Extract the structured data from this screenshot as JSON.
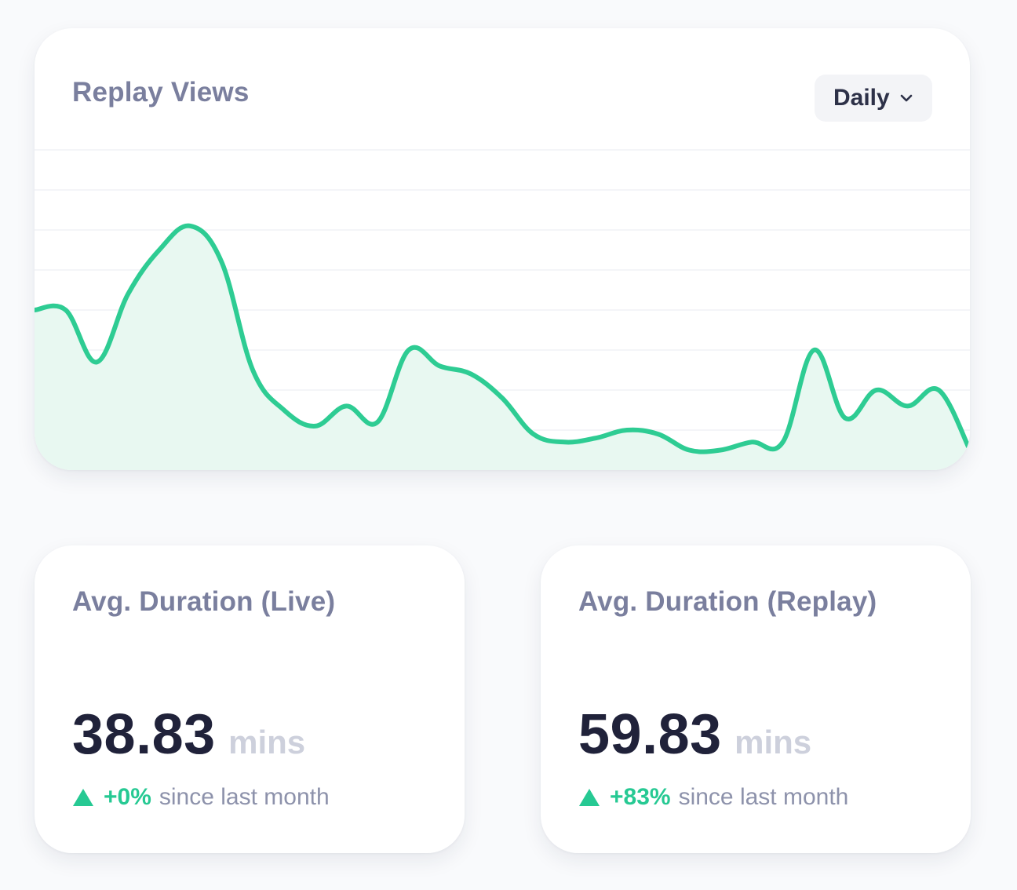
{
  "chart_card": {
    "title": "Replay Views",
    "period_dropdown": {
      "selected": "Daily",
      "icon": "chevron-down-icon"
    }
  },
  "chart_data": {
    "type": "area",
    "title": "Replay Views",
    "xlabel": "",
    "ylabel": "",
    "grid": true,
    "x_tick_labels": false,
    "y_tick_labels": false,
    "ylim": [
      0,
      8
    ],
    "x": [
      1,
      2,
      3,
      4,
      5,
      6,
      7,
      8,
      9,
      10,
      11,
      12,
      13,
      14,
      15,
      16,
      17,
      18,
      19,
      20,
      21,
      22,
      23,
      24,
      25,
      26,
      27,
      28,
      29,
      30,
      31
    ],
    "values": [
      4.0,
      4.0,
      2.7,
      4.4,
      5.5,
      6.1,
      5.2,
      2.5,
      1.5,
      1.1,
      1.6,
      1.2,
      3.0,
      2.6,
      2.4,
      1.8,
      0.9,
      0.7,
      0.8,
      1.0,
      0.9,
      0.5,
      0.5,
      0.7,
      0.7,
      3.0,
      1.3,
      2.0,
      1.6,
      2.0,
      0.5
    ],
    "colors": {
      "line": "#2ecc93",
      "fill": "#e8f8f1",
      "grid": "#f1f2f5"
    }
  },
  "stats": [
    {
      "title": "Avg. Duration (Live)",
      "value": "38.83",
      "unit": "mins",
      "change": "+0%",
      "since": "since last month",
      "trend_icon": "triangle-up-icon"
    },
    {
      "title": "Avg. Duration (Replay)",
      "value": "59.83",
      "unit": "mins",
      "change": "+83%",
      "since": "since last month",
      "trend_icon": "triangle-up-icon"
    }
  ],
  "colors": {
    "background": "#f9fafc",
    "card": "#ffffff",
    "accent": "#26c993",
    "title": "#7a7f9e",
    "value": "#20223a",
    "muted": "#8d92ab"
  }
}
